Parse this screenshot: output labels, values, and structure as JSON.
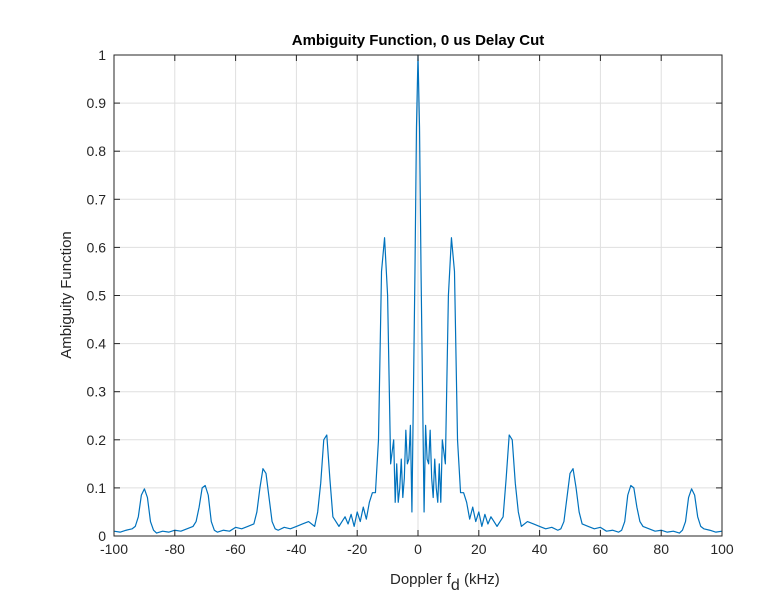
{
  "chart_data": {
    "type": "line",
    "title": "Ambiguity Function, 0 us Delay Cut",
    "xlabel_prefix": "Doppler f",
    "xlabel_subscript": "d",
    "xlabel_suffix": " (kHz)",
    "ylabel": "Ambiguity Function",
    "xlim": [
      -100,
      100
    ],
    "ylim": [
      0,
      1
    ],
    "grid": true,
    "line_color": "#0072BD",
    "xticks": [
      -100,
      -80,
      -60,
      -40,
      -20,
      0,
      20,
      40,
      60,
      80,
      100
    ],
    "xtick_labels": [
      "-100",
      "-80",
      "-60",
      "-40",
      "-20",
      "0",
      "20",
      "40",
      "60",
      "80",
      "100"
    ],
    "yticks": [
      0,
      0.1,
      0.2,
      0.3,
      0.4,
      0.5,
      0.6,
      0.7,
      0.8,
      0.9,
      1
    ],
    "ytick_labels": [
      "0",
      "0.1",
      "0.2",
      "0.3",
      "0.4",
      "0.5",
      "0.6",
      "0.7",
      "0.8",
      "0.9",
      "1"
    ],
    "series": [
      {
        "x": [
          -100,
          -98,
          -96,
          -94,
          -93,
          -92,
          -91,
          -90,
          -89,
          -88,
          -87,
          -86,
          -84,
          -82,
          -80,
          -78,
          -76,
          -74,
          -73,
          -72,
          -71,
          -70,
          -69,
          -68,
          -67,
          -66,
          -64,
          -62,
          -60,
          -58,
          -56,
          -54,
          -53,
          -52,
          -51,
          -50,
          -49,
          -48,
          -47,
          -46,
          -44,
          -42,
          -40,
          -38,
          -36,
          -34,
          -33,
          -32,
          -31,
          -30,
          -29,
          -28,
          -27,
          -26,
          -25,
          -24,
          -23,
          -22,
          -21,
          -20,
          -19,
          -18,
          -17,
          -16,
          -15,
          -14,
          -13,
          -12,
          -11,
          -10,
          -9,
          -8,
          -7.5,
          -7,
          -6.5,
          -6,
          -5.5,
          -5,
          -4.5,
          -4,
          -3.5,
          -3,
          -2.5,
          -2,
          -1.5,
          -1,
          -0.5,
          0,
          0.5,
          1,
          1.5,
          2,
          2.5,
          3,
          3.5,
          4,
          4.5,
          5,
          5.5,
          6,
          6.5,
          7,
          7.5,
          8,
          9,
          10,
          11,
          12,
          13,
          14,
          15,
          16,
          17,
          18,
          19,
          20,
          21,
          22,
          23,
          24,
          25,
          26,
          27,
          28,
          29,
          30,
          31,
          32,
          33,
          34,
          36,
          38,
          40,
          42,
          44,
          46,
          47,
          48,
          49,
          50,
          51,
          52,
          53,
          54,
          56,
          58,
          60,
          62,
          64,
          66,
          67,
          68,
          69,
          70,
          71,
          72,
          73,
          74,
          76,
          78,
          80,
          82,
          84,
          86,
          87,
          88,
          89,
          90,
          91,
          92,
          93,
          94,
          96,
          98,
          100
        ],
        "y": [
          0.01,
          0.008,
          0.012,
          0.015,
          0.02,
          0.04,
          0.085,
          0.098,
          0.08,
          0.03,
          0.012,
          0.006,
          0.01,
          0.008,
          0.012,
          0.01,
          0.015,
          0.02,
          0.03,
          0.06,
          0.1,
          0.105,
          0.085,
          0.03,
          0.012,
          0.008,
          0.012,
          0.01,
          0.018,
          0.015,
          0.02,
          0.025,
          0.05,
          0.1,
          0.14,
          0.13,
          0.08,
          0.03,
          0.015,
          0.012,
          0.018,
          0.015,
          0.02,
          0.025,
          0.03,
          0.02,
          0.05,
          0.11,
          0.2,
          0.21,
          0.12,
          0.04,
          0.03,
          0.02,
          0.03,
          0.04,
          0.025,
          0.045,
          0.02,
          0.05,
          0.03,
          0.06,
          0.035,
          0.07,
          0.09,
          0.09,
          0.2,
          0.55,
          0.62,
          0.5,
          0.15,
          0.2,
          0.07,
          0.15,
          0.07,
          0.1,
          0.16,
          0.08,
          0.12,
          0.22,
          0.15,
          0.16,
          0.23,
          0.05,
          0.3,
          0.55,
          0.85,
          1.0,
          0.85,
          0.55,
          0.3,
          0.05,
          0.23,
          0.16,
          0.15,
          0.22,
          0.12,
          0.08,
          0.16,
          0.1,
          0.07,
          0.15,
          0.07,
          0.2,
          0.15,
          0.5,
          0.62,
          0.55,
          0.2,
          0.09,
          0.09,
          0.07,
          0.035,
          0.06,
          0.03,
          0.05,
          0.02,
          0.045,
          0.025,
          0.04,
          0.03,
          0.02,
          0.03,
          0.04,
          0.12,
          0.21,
          0.2,
          0.11,
          0.05,
          0.02,
          0.03,
          0.025,
          0.02,
          0.015,
          0.018,
          0.012,
          0.015,
          0.03,
          0.08,
          0.13,
          0.14,
          0.1,
          0.05,
          0.025,
          0.02,
          0.015,
          0.018,
          0.01,
          0.012,
          0.008,
          0.012,
          0.03,
          0.085,
          0.105,
          0.1,
          0.06,
          0.03,
          0.02,
          0.015,
          0.01,
          0.012,
          0.008,
          0.01,
          0.006,
          0.012,
          0.03,
          0.08,
          0.098,
          0.085,
          0.04,
          0.02,
          0.015,
          0.012,
          0.008,
          0.01
        ]
      }
    ]
  }
}
